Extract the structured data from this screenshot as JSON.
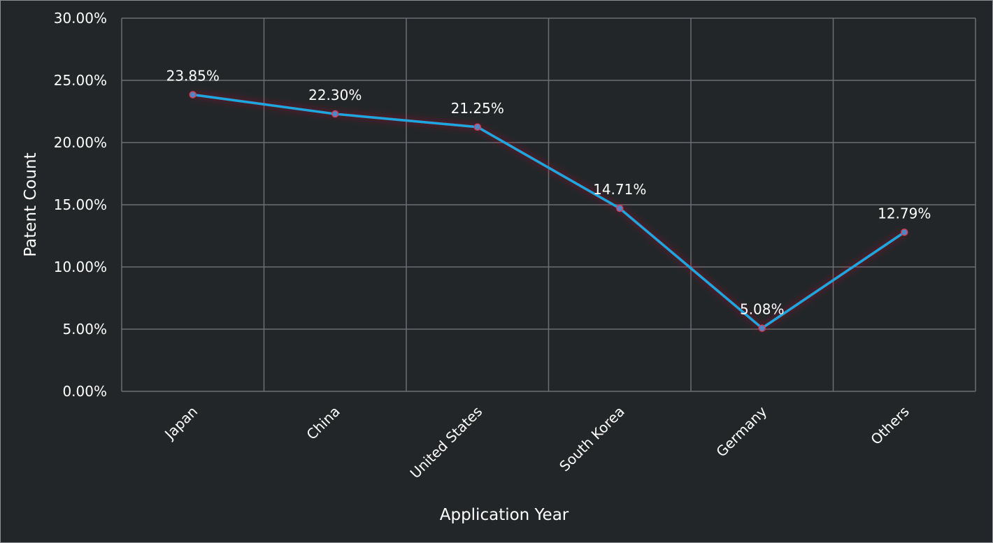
{
  "chart_data": {
    "type": "line",
    "categories": [
      "Japan",
      "China",
      "United States",
      "South Korea",
      "Germany",
      "Others"
    ],
    "values": [
      23.85,
      22.3,
      21.25,
      14.71,
      5.08,
      12.79
    ],
    "data_labels": [
      "23.85%",
      "22.30%",
      "21.25%",
      "14.71%",
      "5.08%",
      "12.79%"
    ],
    "y_ticks": [
      "0.00%",
      "5.00%",
      "10.00%",
      "15.00%",
      "20.00%",
      "25.00%",
      "30.00%"
    ],
    "ylim": [
      0,
      30
    ],
    "xlabel": "Application Year",
    "ylabel": "Patent Count",
    "grid": true,
    "legend": "none"
  },
  "colors": {
    "background": "#232629",
    "grid": "#6b6e72",
    "line": "#1ea7e1",
    "marker_fill": "#4f86c6",
    "marker_stroke": "#d1405a",
    "glow": "#c8102e",
    "text": "#ffffff"
  }
}
